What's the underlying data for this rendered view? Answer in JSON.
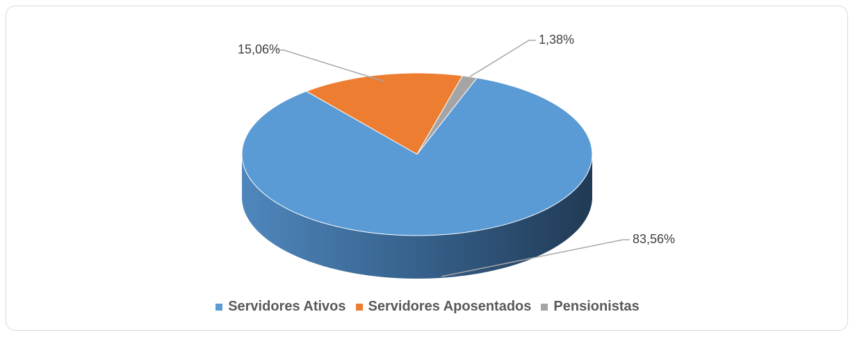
{
  "chart_data": {
    "type": "pie3d",
    "categories": [
      "Servidores Ativos",
      "Servidores Aposentados",
      "Pensionistas"
    ],
    "values": [
      83.56,
      15.06,
      1.38
    ],
    "value_labels": [
      "83,56%",
      "15,06%",
      "1,38%"
    ],
    "colors": [
      "#5b9bd5",
      "#ed7d31",
      "#a5a5a5"
    ],
    "legend": "bottom"
  }
}
